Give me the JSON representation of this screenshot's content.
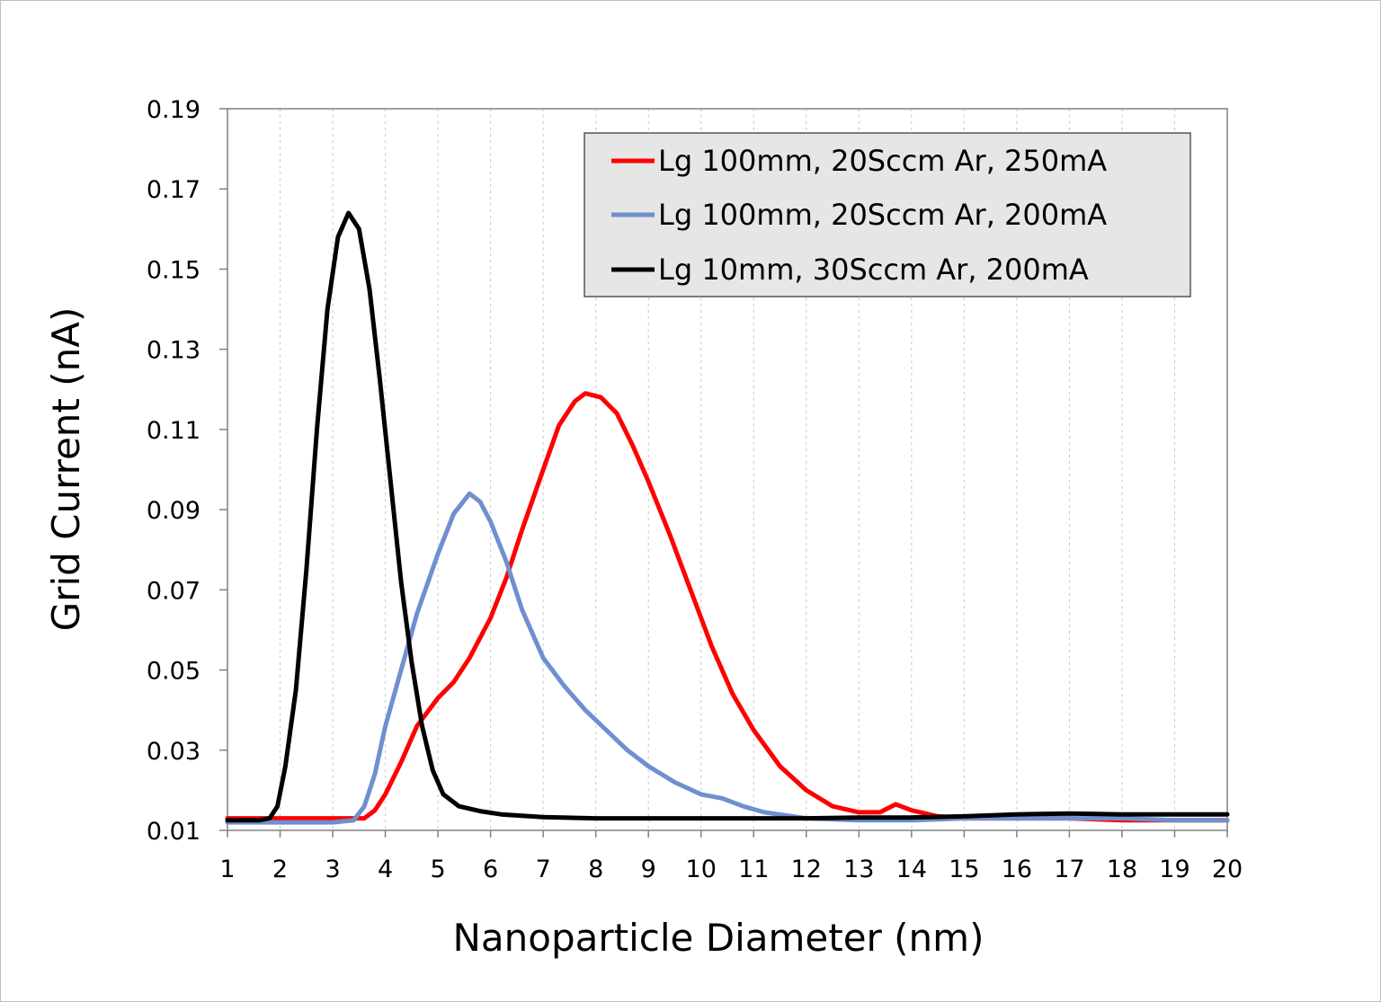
{
  "chart_data": {
    "type": "line",
    "title": "",
    "xlabel": "Nanoparticle Diameter (nm)",
    "ylabel": "Grid Current (nA)",
    "xlim": [
      1,
      20
    ],
    "ylim": [
      0.01,
      0.19
    ],
    "x_ticks": [
      "1",
      "2",
      "3",
      "4",
      "5",
      "6",
      "7",
      "8",
      "9",
      "10",
      "11",
      "12",
      "13",
      "14",
      "15",
      "16",
      "17",
      "18",
      "19",
      "20"
    ],
    "y_ticks": [
      "0.01",
      "0.03",
      "0.05",
      "0.07",
      "0.09",
      "0.11",
      "0.13",
      "0.15",
      "0.17",
      "0.19"
    ],
    "grid": "vertical-dotted",
    "legend_position": "top-right",
    "series": [
      {
        "name": "Lg 100mm, 20Sccm Ar, 250mA",
        "color": "#ff0000",
        "points": [
          [
            1,
            0.013
          ],
          [
            2,
            0.013
          ],
          [
            3,
            0.013
          ],
          [
            3.6,
            0.013
          ],
          [
            3.8,
            0.015
          ],
          [
            4,
            0.019
          ],
          [
            4.3,
            0.027
          ],
          [
            4.6,
            0.036
          ],
          [
            5,
            0.043
          ],
          [
            5.3,
            0.047
          ],
          [
            5.6,
            0.053
          ],
          [
            6,
            0.063
          ],
          [
            6.3,
            0.073
          ],
          [
            6.6,
            0.085
          ],
          [
            7,
            0.1
          ],
          [
            7.3,
            0.111
          ],
          [
            7.6,
            0.117
          ],
          [
            7.8,
            0.119
          ],
          [
            8.1,
            0.118
          ],
          [
            8.4,
            0.114
          ],
          [
            8.7,
            0.106
          ],
          [
            9,
            0.097
          ],
          [
            9.4,
            0.084
          ],
          [
            9.8,
            0.07
          ],
          [
            10.2,
            0.056
          ],
          [
            10.6,
            0.044
          ],
          [
            11,
            0.035
          ],
          [
            11.5,
            0.026
          ],
          [
            12,
            0.02
          ],
          [
            12.5,
            0.016
          ],
          [
            13,
            0.0145
          ],
          [
            13.4,
            0.0145
          ],
          [
            13.7,
            0.0165
          ],
          [
            14,
            0.015
          ],
          [
            14.5,
            0.0135
          ],
          [
            15,
            0.013
          ],
          [
            16,
            0.013
          ],
          [
            17,
            0.013
          ],
          [
            18,
            0.0125
          ],
          [
            19,
            0.0125
          ],
          [
            20,
            0.0125
          ]
        ]
      },
      {
        "name": "Lg 100mm, 20Sccm Ar, 200mA",
        "color": "#6f8fcf",
        "points": [
          [
            1,
            0.012
          ],
          [
            2,
            0.012
          ],
          [
            3,
            0.012
          ],
          [
            3.4,
            0.0125
          ],
          [
            3.6,
            0.016
          ],
          [
            3.8,
            0.024
          ],
          [
            4,
            0.036
          ],
          [
            4.3,
            0.05
          ],
          [
            4.6,
            0.064
          ],
          [
            5,
            0.079
          ],
          [
            5.3,
            0.089
          ],
          [
            5.6,
            0.094
          ],
          [
            5.8,
            0.092
          ],
          [
            6,
            0.087
          ],
          [
            6.3,
            0.077
          ],
          [
            6.6,
            0.065
          ],
          [
            7,
            0.053
          ],
          [
            7.4,
            0.046
          ],
          [
            7.8,
            0.04
          ],
          [
            8.2,
            0.035
          ],
          [
            8.6,
            0.03
          ],
          [
            9,
            0.026
          ],
          [
            9.5,
            0.022
          ],
          [
            10,
            0.019
          ],
          [
            10.4,
            0.018
          ],
          [
            10.8,
            0.016
          ],
          [
            11.2,
            0.0145
          ],
          [
            12,
            0.013
          ],
          [
            13,
            0.0125
          ],
          [
            14,
            0.0125
          ],
          [
            15,
            0.013
          ],
          [
            16,
            0.013
          ],
          [
            17,
            0.013
          ],
          [
            18,
            0.013
          ],
          [
            19,
            0.0125
          ],
          [
            20,
            0.0125
          ]
        ]
      },
      {
        "name": "Lg 10mm, 30Sccm Ar, 200mA",
        "color": "#000000",
        "points": [
          [
            1,
            0.0125
          ],
          [
            1.6,
            0.0125
          ],
          [
            1.8,
            0.013
          ],
          [
            1.95,
            0.016
          ],
          [
            2.1,
            0.026
          ],
          [
            2.3,
            0.045
          ],
          [
            2.5,
            0.075
          ],
          [
            2.7,
            0.11
          ],
          [
            2.9,
            0.14
          ],
          [
            3.1,
            0.158
          ],
          [
            3.3,
            0.164
          ],
          [
            3.5,
            0.16
          ],
          [
            3.7,
            0.145
          ],
          [
            3.9,
            0.122
          ],
          [
            4.1,
            0.097
          ],
          [
            4.3,
            0.072
          ],
          [
            4.5,
            0.052
          ],
          [
            4.7,
            0.036
          ],
          [
            4.9,
            0.025
          ],
          [
            5.1,
            0.019
          ],
          [
            5.4,
            0.016
          ],
          [
            5.8,
            0.0148
          ],
          [
            6.2,
            0.014
          ],
          [
            7,
            0.0133
          ],
          [
            8,
            0.013
          ],
          [
            9,
            0.013
          ],
          [
            10,
            0.013
          ],
          [
            11,
            0.013
          ],
          [
            12,
            0.013
          ],
          [
            13,
            0.0132
          ],
          [
            14,
            0.0132
          ],
          [
            15,
            0.0135
          ],
          [
            16,
            0.014
          ],
          [
            17,
            0.0142
          ],
          [
            18,
            0.014
          ],
          [
            19,
            0.014
          ],
          [
            20,
            0.014
          ]
        ]
      }
    ]
  }
}
